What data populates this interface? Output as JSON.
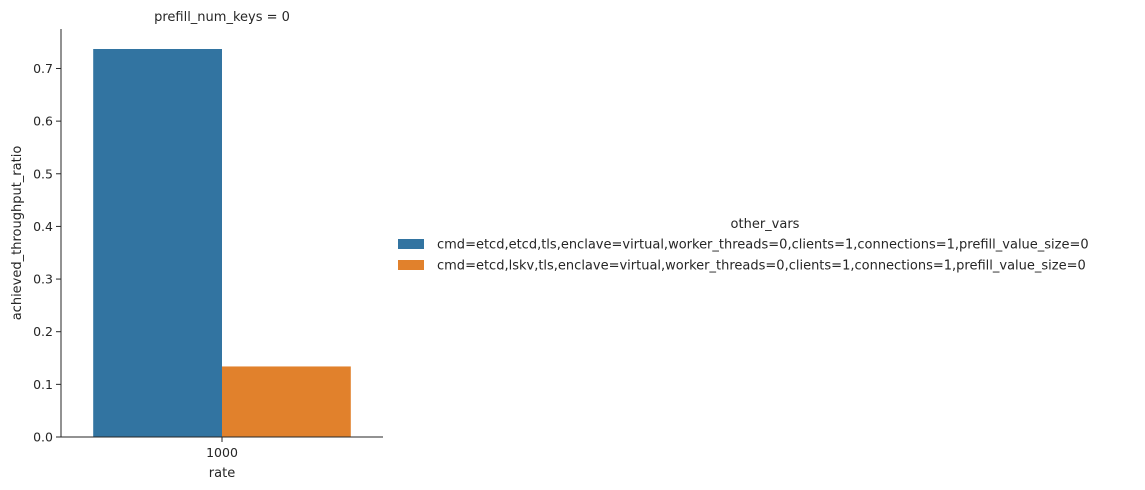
{
  "chart_data": {
    "type": "bar",
    "title": "prefill_num_keys = 0",
    "xlabel": "rate",
    "ylabel": "achieved_throughput_ratio",
    "categories": [
      "1000"
    ],
    "ylim": [
      0,
      0.775
    ],
    "yticks": [
      "0.0",
      "0.1",
      "0.2",
      "0.3",
      "0.4",
      "0.5",
      "0.6",
      "0.7"
    ],
    "grid": false,
    "legend_title": "other_vars",
    "legend_position": "right",
    "series": [
      {
        "name": "cmd=etcd,etcd,tls,enclave=virtual,worker_threads=0,clients=1,connections=1,prefill_value_size=0",
        "color": "#3274a1",
        "values": [
          0.737
        ]
      },
      {
        "name": "cmd=etcd,lskv,tls,enclave=virtual,worker_threads=0,clients=1,connections=1,prefill_value_size=0",
        "color": "#e1812c",
        "values": [
          0.134
        ]
      }
    ]
  }
}
